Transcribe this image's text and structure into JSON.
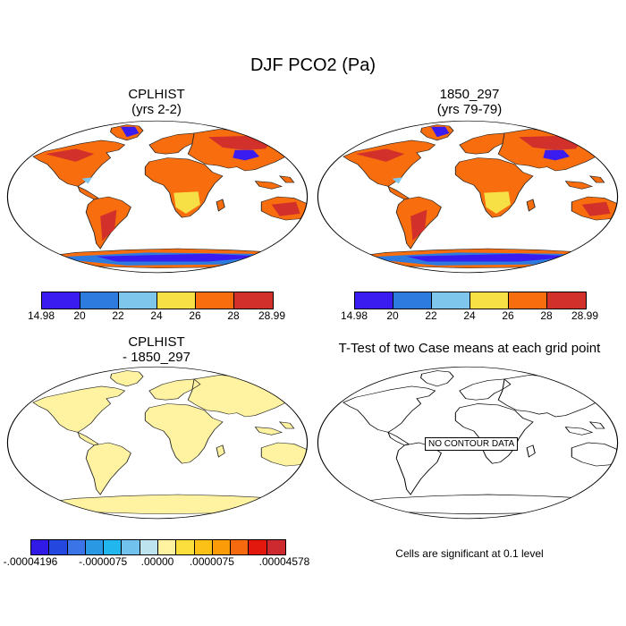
{
  "title": "DJF PCO2 (Pa)",
  "panels": {
    "tl": {
      "title": "CPLHIST",
      "subtitle": "(yrs 2-2)"
    },
    "tr": {
      "title": "1850_297",
      "subtitle": "(yrs 79-79)"
    },
    "bl": {
      "title": "CPLHIST",
      "subtitle": "- 1850_297"
    },
    "br": {
      "title": "T-Test of two Case means at each grid point",
      "no_data": "NO CONTOUR DATA"
    }
  },
  "colorbar_top": {
    "colors": [
      "#3b1cf0",
      "#2e7be0",
      "#7fc6ec",
      "#f7e046",
      "#f86d0e",
      "#d2302a"
    ],
    "labels": [
      "14.98",
      "20",
      "22",
      "24",
      "26",
      "28",
      "28.99"
    ]
  },
  "colorbar_diff": {
    "colors": [
      "#3119e6",
      "#2447e0",
      "#3a74e6",
      "#2a98e3",
      "#21b6ee",
      "#72c2ee",
      "#bde3ef",
      "#fff3a1",
      "#fcdf3c",
      "#fcc116",
      "#fb9b08",
      "#f56a0e",
      "#e2180e",
      "#cc2a2e"
    ],
    "labels": [
      "-.00004196",
      "-.0000075",
      ".00000",
      ".0000075",
      ".00004578"
    ]
  },
  "significance_note": "Cells are significant at 0.1 level"
}
